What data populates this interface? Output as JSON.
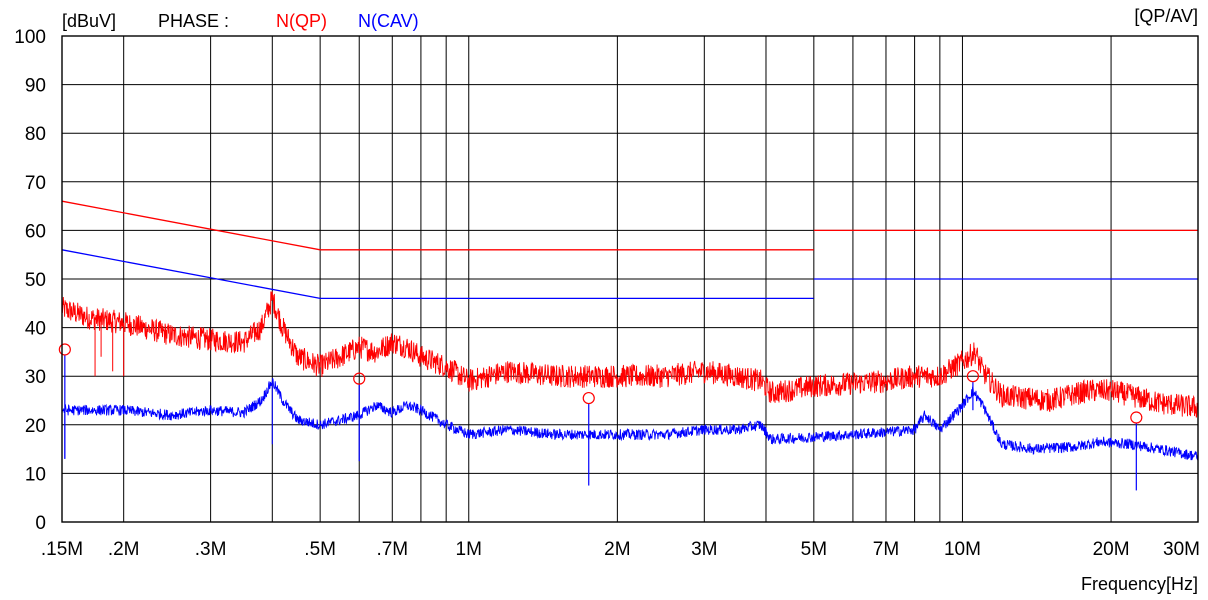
{
  "chart_data": {
    "type": "line",
    "x_scale": "log",
    "xlim": [
      0.15,
      30
    ],
    "ylim": [
      0,
      100
    ],
    "grid": true,
    "ylabel": "[dBuV]",
    "xlabel": "Frequency[Hz]",
    "top_right_label": "[QP/AV]",
    "phase_label": "PHASE :",
    "legend_qp": "N(QP)",
    "legend_av": "N(CAV)",
    "legend_placement": "top",
    "colors": {
      "qp": "#ff0000",
      "av": "#0000ff"
    },
    "y_ticks": [
      "100",
      "90",
      "80",
      "70",
      "60",
      "50",
      "40",
      "30",
      "20",
      "10",
      "0"
    ],
    "x_tick_labels": [
      {
        "f": 0.15,
        "label": ".15M"
      },
      {
        "f": 0.2,
        "label": ".2M"
      },
      {
        "f": 0.3,
        "label": ".3M"
      },
      {
        "f": 0.5,
        "label": ".5M"
      },
      {
        "f": 0.7,
        "label": ".7M"
      },
      {
        "f": 1,
        "label": "1M"
      },
      {
        "f": 2,
        "label": "2M"
      },
      {
        "f": 3,
        "label": "3M"
      },
      {
        "f": 5,
        "label": "5M"
      },
      {
        "f": 7,
        "label": "7M"
      },
      {
        "f": 10,
        "label": "10M"
      },
      {
        "f": 20,
        "label": "20M"
      },
      {
        "f": 30,
        "label": "30M"
      }
    ],
    "series": [
      {
        "key": "qp_limit",
        "segments": [
          [
            [
              0.15,
              66
            ],
            [
              0.5,
              56
            ],
            [
              5,
              56
            ]
          ],
          [
            [
              5,
              60
            ],
            [
              30,
              60
            ]
          ]
        ]
      },
      {
        "key": "av_limit",
        "segments": [
          [
            [
              0.15,
              56
            ],
            [
              0.5,
              46
            ],
            [
              5,
              46
            ]
          ],
          [
            [
              5,
              50
            ],
            [
              30,
              50
            ]
          ]
        ]
      },
      {
        "key": "qp_trace",
        "points": [
          [
            0.15,
            44
          ],
          [
            0.17,
            42
          ],
          [
            0.2,
            41
          ],
          [
            0.25,
            38.5
          ],
          [
            0.3,
            37.5
          ],
          [
            0.35,
            37
          ],
          [
            0.38,
            40
          ],
          [
            0.4,
            46
          ],
          [
            0.42,
            40
          ],
          [
            0.45,
            34
          ],
          [
            0.5,
            32
          ],
          [
            0.55,
            34
          ],
          [
            0.6,
            36
          ],
          [
            0.65,
            35
          ],
          [
            0.7,
            37
          ],
          [
            0.75,
            36
          ],
          [
            0.8,
            34
          ],
          [
            0.9,
            32
          ],
          [
            1,
            29
          ],
          [
            1.2,
            31
          ],
          [
            1.5,
            30
          ],
          [
            1.8,
            30
          ],
          [
            2,
            30
          ],
          [
            2.5,
            30
          ],
          [
            3,
            31
          ],
          [
            3.5,
            30
          ],
          [
            3.9,
            29
          ],
          [
            4.1,
            26.5
          ],
          [
            5,
            28
          ],
          [
            6,
            28.5
          ],
          [
            7,
            29
          ],
          [
            8,
            30
          ],
          [
            9,
            30
          ],
          [
            10,
            33
          ],
          [
            10.6,
            35
          ],
          [
            11,
            31
          ],
          [
            12,
            26
          ],
          [
            15,
            25
          ],
          [
            18,
            27
          ],
          [
            20,
            27
          ],
          [
            22,
            26
          ],
          [
            25,
            24.5
          ],
          [
            30,
            23.5
          ]
        ],
        "noise": 2.4,
        "spikes": [
          [
            0.175,
            30
          ],
          [
            0.18,
            34
          ],
          [
            0.19,
            31
          ],
          [
            0.2,
            30
          ]
        ]
      },
      {
        "key": "av_trace",
        "points": [
          [
            0.15,
            23
          ],
          [
            0.2,
            23
          ],
          [
            0.25,
            22
          ],
          [
            0.3,
            23
          ],
          [
            0.35,
            22.5
          ],
          [
            0.38,
            25
          ],
          [
            0.4,
            29
          ],
          [
            0.42,
            25
          ],
          [
            0.45,
            21
          ],
          [
            0.5,
            20
          ],
          [
            0.55,
            21
          ],
          [
            0.6,
            22
          ],
          [
            0.65,
            24
          ],
          [
            0.7,
            22.5
          ],
          [
            0.75,
            24
          ],
          [
            0.8,
            23
          ],
          [
            0.9,
            20
          ],
          [
            1,
            18
          ],
          [
            1.2,
            19
          ],
          [
            1.5,
            18
          ],
          [
            1.8,
            18
          ],
          [
            2,
            18
          ],
          [
            2.5,
            18
          ],
          [
            3,
            19
          ],
          [
            3.5,
            19
          ],
          [
            3.9,
            20
          ],
          [
            4.1,
            17
          ],
          [
            5,
            17.5
          ],
          [
            6,
            18
          ],
          [
            7,
            18.5
          ],
          [
            8,
            19
          ],
          [
            8.4,
            22
          ],
          [
            9,
            19
          ],
          [
            10,
            24
          ],
          [
            10.5,
            27
          ],
          [
            11,
            24
          ],
          [
            12,
            16
          ],
          [
            14,
            15
          ],
          [
            17,
            15.5
          ],
          [
            19,
            16.5
          ],
          [
            22,
            16
          ],
          [
            25,
            15
          ],
          [
            30,
            13.5
          ]
        ],
        "noise": 1.1,
        "spikes": [
          [
            0.152,
            13
          ],
          [
            0.4,
            16
          ]
        ]
      }
    ],
    "markers_qp": [
      [
        0.152,
        35.5
      ],
      [
        0.6,
        29.5
      ],
      [
        1.75,
        25.5
      ],
      [
        10.5,
        30
      ],
      [
        22.5,
        21.5
      ]
    ],
    "markers_av": [
      [
        0.152,
        13
      ],
      [
        0.6,
        12.5
      ],
      [
        1.75,
        7.5
      ],
      [
        10.5,
        23
      ],
      [
        22.5,
        6.5
      ]
    ]
  }
}
